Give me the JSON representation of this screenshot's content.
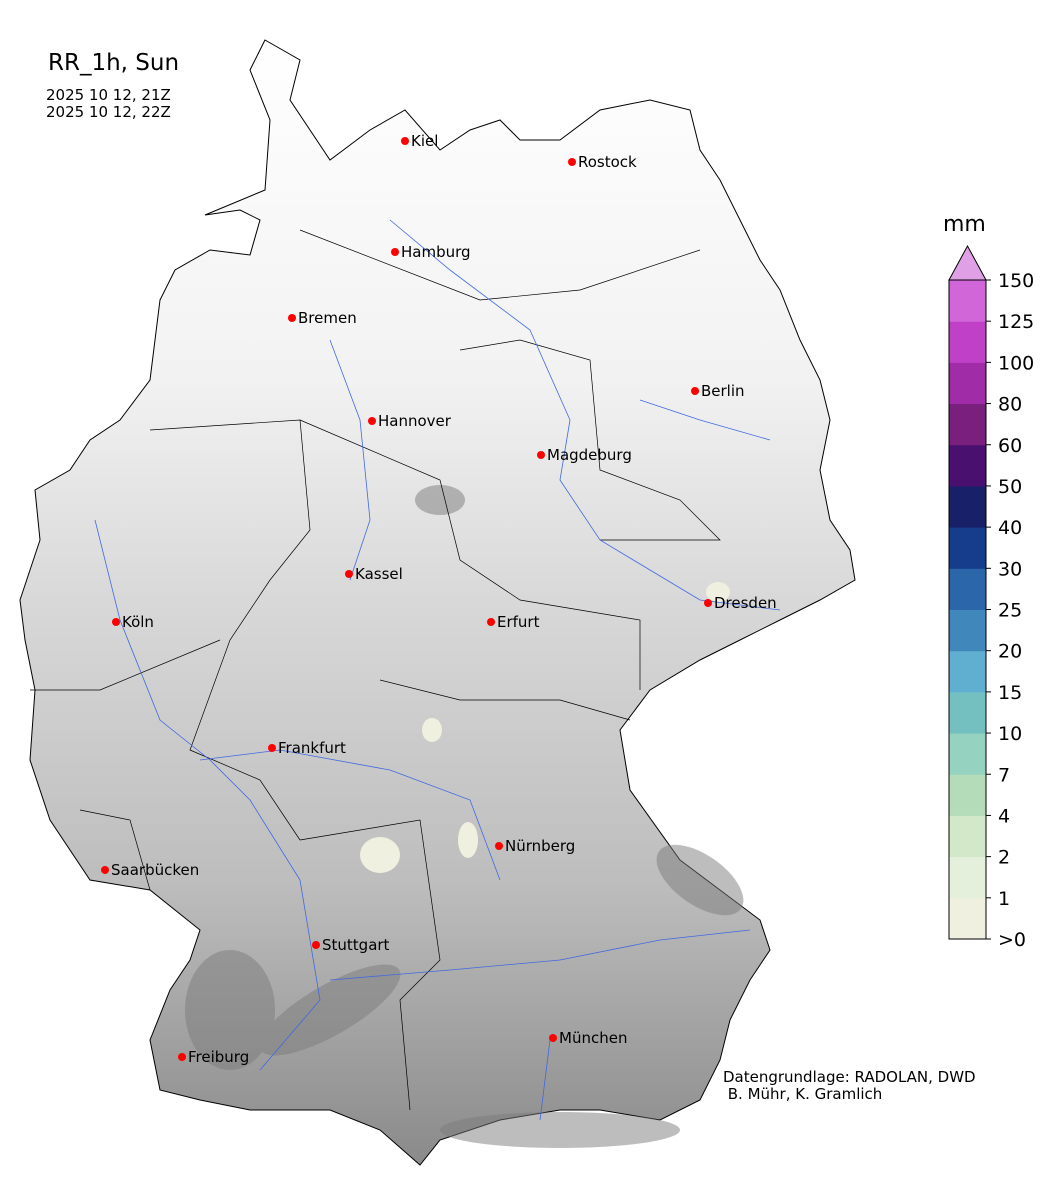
{
  "title": "RR_1h, Sun",
  "time_start": "2025 10 12, 21Z",
  "time_end": "2025 10 12, 22Z",
  "colorbar": {
    "unit": "mm",
    "extend": "max",
    "ticks": [
      ">0",
      "1",
      "2",
      "4",
      "7",
      "10",
      "15",
      "20",
      "25",
      "30",
      "40",
      "50",
      "60",
      "80",
      "100",
      "125",
      "150"
    ],
    "colors": [
      "#f0f0e0",
      "#e4f0dc",
      "#d2e8c8",
      "#b4dcb8",
      "#96d2c0",
      "#74c0c0",
      "#60aed0",
      "#4088bc",
      "#2a66a8",
      "#163c8c",
      "#182068",
      "#4a1070",
      "#78207c",
      "#a02ca8",
      "#c040c8",
      "#d066d8"
    ],
    "over_color": "#e0a0e6"
  },
  "cities": [
    {
      "name": "Kiel"
    },
    {
      "name": "Rostock"
    },
    {
      "name": "Hamburg"
    },
    {
      "name": "Bremen"
    },
    {
      "name": "Berlin"
    },
    {
      "name": "Hannover"
    },
    {
      "name": "Magdeburg"
    },
    {
      "name": "Kassel"
    },
    {
      "name": "Dresden"
    },
    {
      "name": "Köln"
    },
    {
      "name": "Erfurt"
    },
    {
      "name": "Frankfurt"
    },
    {
      "name": "Nürnberg"
    },
    {
      "name": "Saarbücken"
    },
    {
      "name": "Stuttgart"
    },
    {
      "name": "Freiburg"
    },
    {
      "name": "München"
    }
  ],
  "city_marker_color": "#ff0000",
  "river_color": "#4169e1",
  "credit": "Datengrundlage: RADOLAN, DWD\n B. Mühr, K. Gramlich"
}
